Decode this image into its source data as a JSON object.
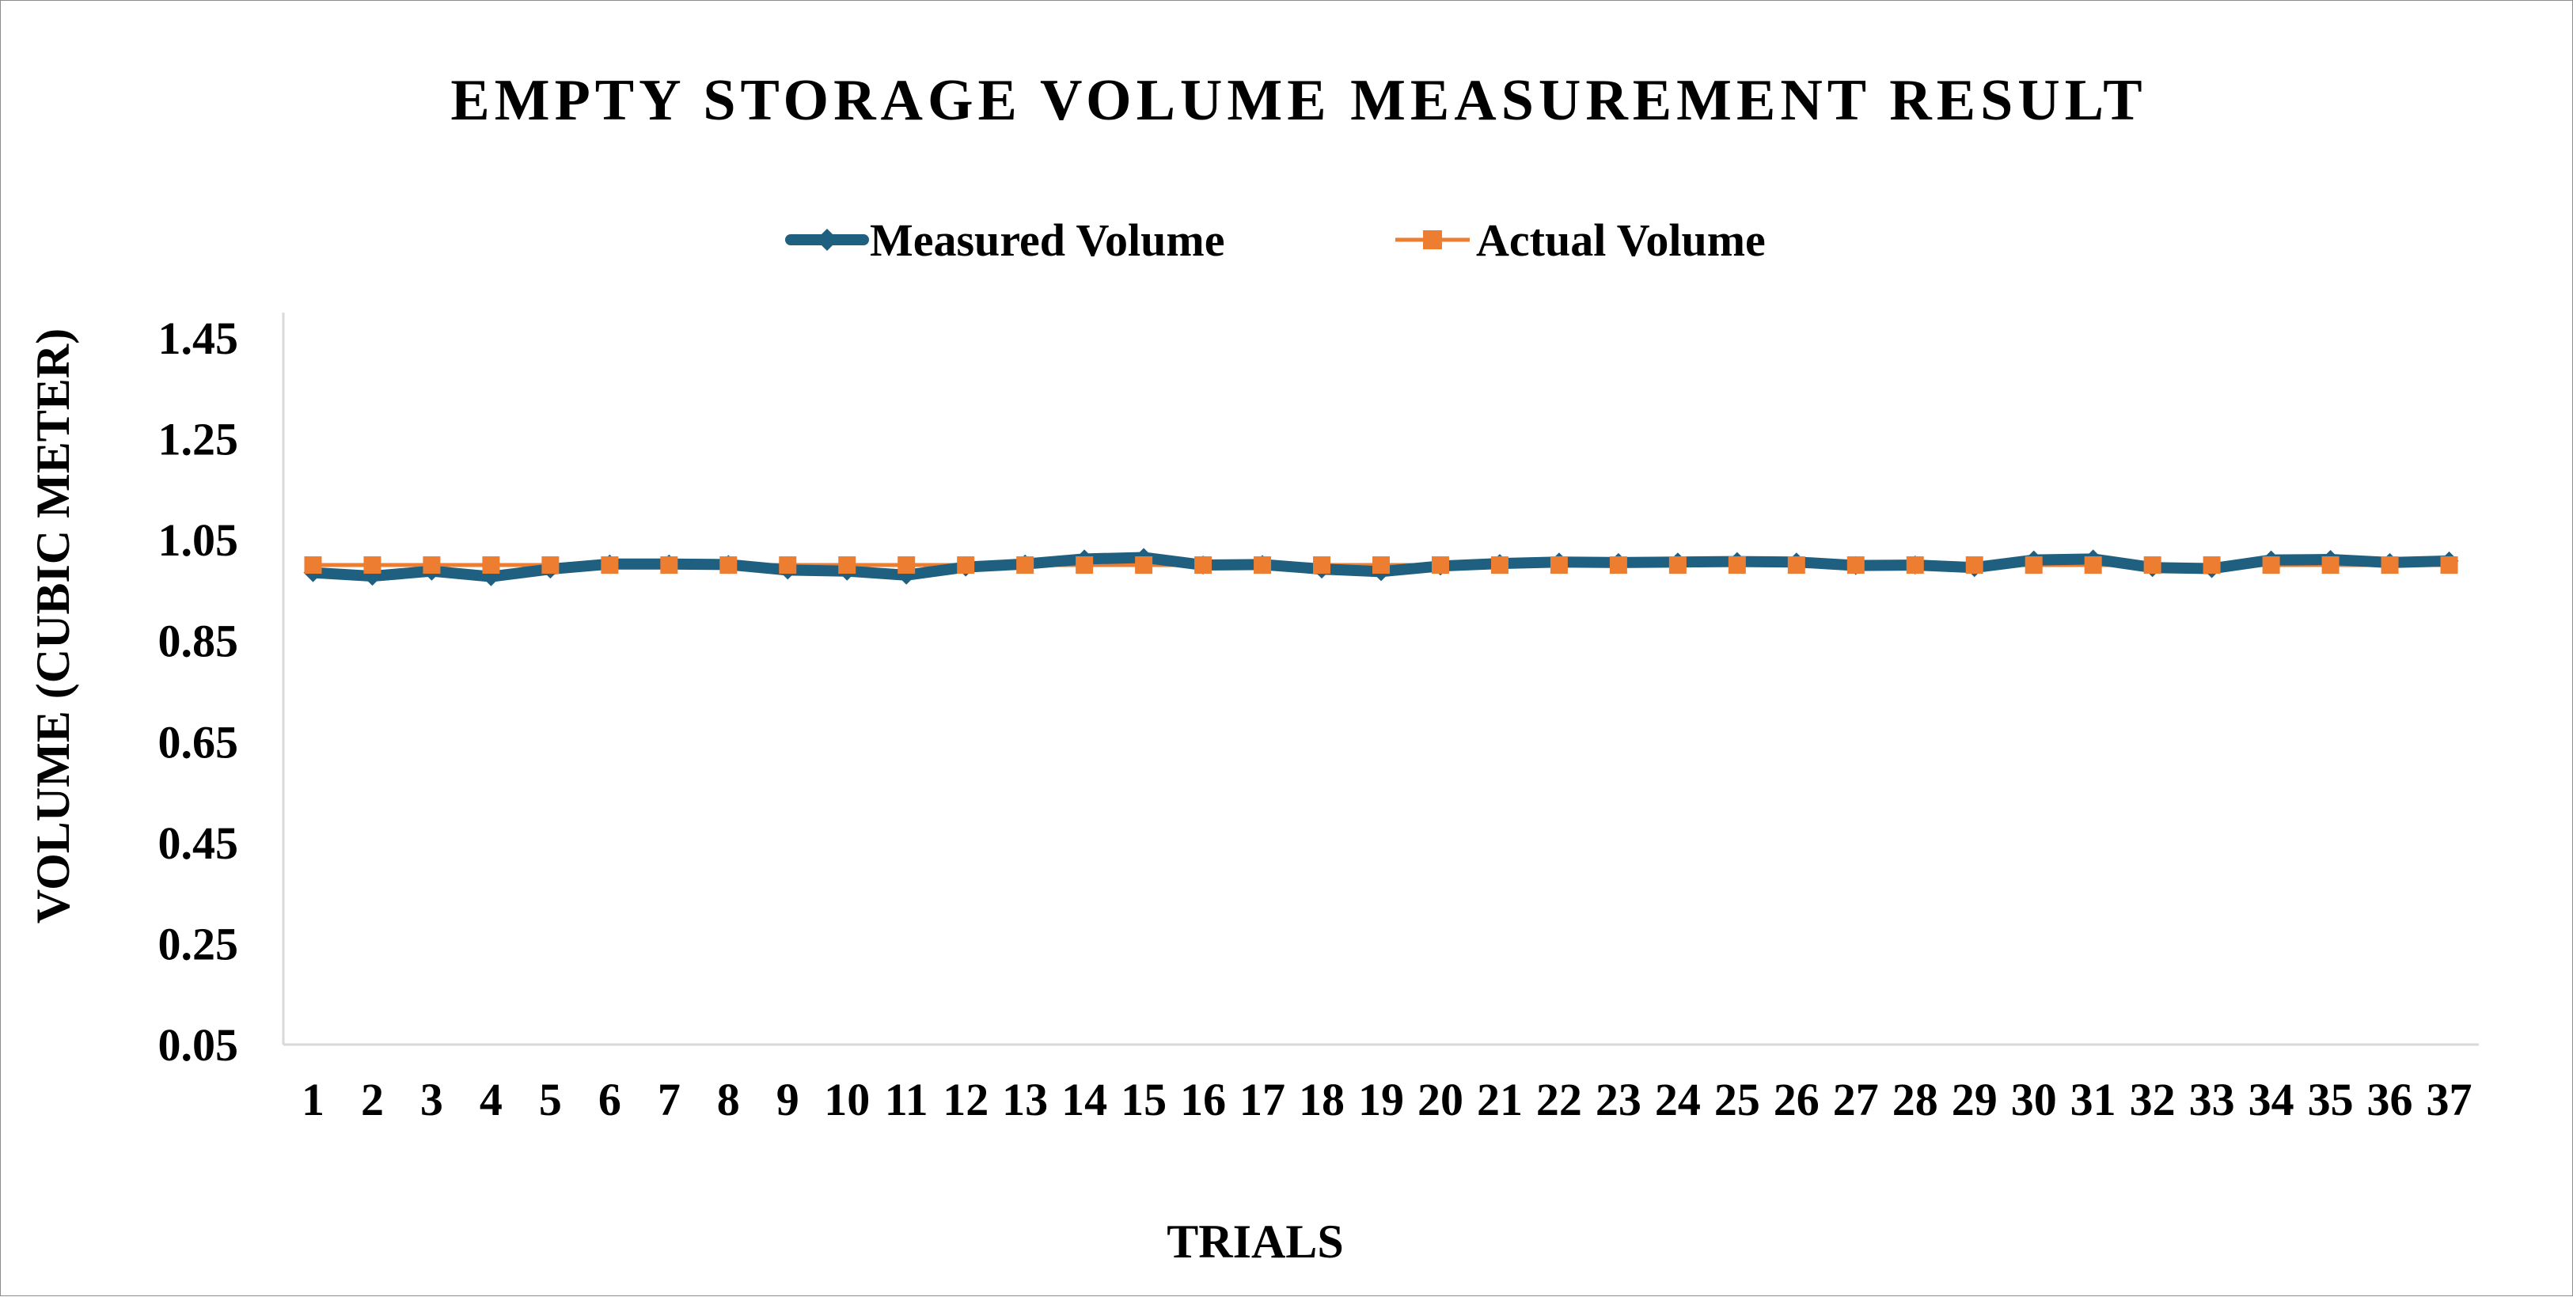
{
  "chart_data": {
    "type": "line",
    "title": "EMPTY STORAGE VOLUME MEASUREMENT RESULT",
    "xlabel": "TRIALS",
    "ylabel": "VOLUME (CUBIC METER)",
    "x": [
      1,
      2,
      3,
      4,
      5,
      6,
      7,
      8,
      9,
      10,
      11,
      12,
      13,
      14,
      15,
      16,
      17,
      18,
      19,
      20,
      21,
      22,
      23,
      24,
      25,
      26,
      27,
      28,
      29,
      30,
      31,
      32,
      33,
      34,
      35,
      36,
      37
    ],
    "ylim": [
      0.05,
      1.45
    ],
    "yticks": [
      0.05,
      0.25,
      0.45,
      0.65,
      0.85,
      1.05,
      1.25,
      1.45
    ],
    "grid": false,
    "legend_position": "top",
    "series": [
      {
        "name": "Measured Volume",
        "color": "#1f5f7f",
        "marker": "diamond",
        "values": [
          0.985,
          0.978,
          0.988,
          0.977,
          0.992,
          1.002,
          1.002,
          1.001,
          0.99,
          0.988,
          0.98,
          0.996,
          1.002,
          1.012,
          1.015,
          1.0,
          1.001,
          0.992,
          0.987,
          0.998,
          1.003,
          1.006,
          1.005,
          1.006,
          1.007,
          1.006,
          0.999,
          1.0,
          0.995,
          1.01,
          1.012,
          0.995,
          0.993,
          1.01,
          1.011,
          1.005,
          1.008
        ]
      },
      {
        "name": "Actual Volume",
        "color": "#ed7d31",
        "marker": "square",
        "values": [
          1.0,
          1.0,
          1.0,
          1.0,
          1.0,
          1.0,
          1.0,
          1.0,
          1.0,
          1.0,
          1.0,
          1.0,
          1.0,
          1.0,
          1.0,
          1.0,
          1.0,
          1.0,
          1.0,
          1.0,
          1.0,
          1.0,
          1.0,
          1.0,
          1.0,
          1.0,
          1.0,
          1.0,
          1.0,
          1.0,
          1.0,
          1.0,
          1.0,
          1.0,
          1.0,
          1.0,
          1.0
        ]
      }
    ]
  }
}
